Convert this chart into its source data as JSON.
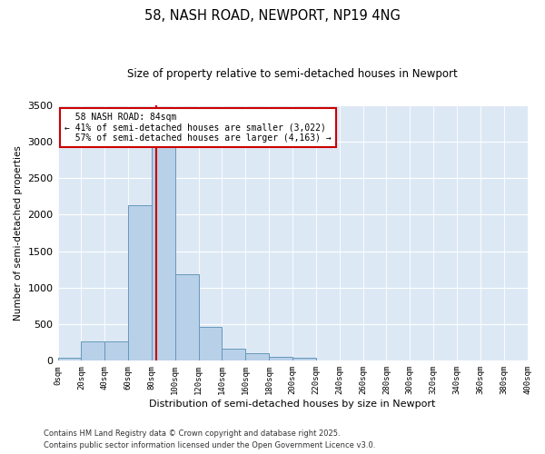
{
  "title": "58, NASH ROAD, NEWPORT, NP19 4NG",
  "subtitle": "Size of property relative to semi-detached houses in Newport",
  "xlabel": "Distribution of semi-detached houses by size in Newport",
  "ylabel": "Number of semi-detached properties",
  "property_label": "58 NASH ROAD: 84sqm",
  "pct_smaller": "41% of semi-detached houses are smaller (3,022)",
  "pct_larger": "57% of semi-detached houses are larger (4,163)",
  "property_size": 84,
  "bar_heights": [
    45,
    270,
    270,
    2130,
    2950,
    1190,
    460,
    170,
    105,
    55,
    45,
    10,
    5,
    0,
    0,
    0,
    0,
    0,
    0,
    0
  ],
  "bin_starts": [
    0,
    20,
    40,
    60,
    80,
    100,
    120,
    140,
    160,
    180,
    200,
    220,
    240,
    260,
    280,
    300,
    320,
    340,
    360,
    380
  ],
  "bar_color": "#b8d0e8",
  "bar_edge_color": "#6699bb",
  "vline_color": "#cc0000",
  "vline_x": 84,
  "annotation_box_color": "#cc0000",
  "background_color": "#dde8f5",
  "ylim": [
    0,
    3500
  ],
  "yticks": [
    0,
    500,
    1000,
    1500,
    2000,
    2500,
    3000,
    3500
  ],
  "footnote1": "Contains HM Land Registry data © Crown copyright and database right 2025.",
  "footnote2": "Contains public sector information licensed under the Open Government Licence v3.0."
}
